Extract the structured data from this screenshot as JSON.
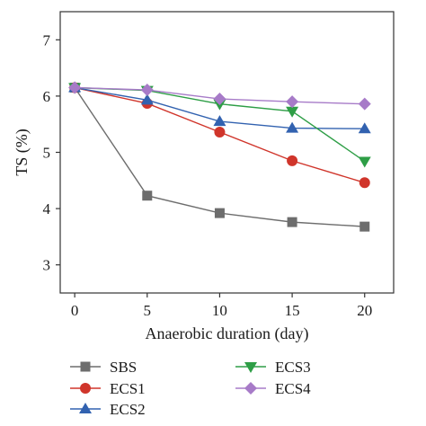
{
  "chart_data": {
    "type": "line",
    "xlabel": "Anaerobic duration (day)",
    "ylabel": "TS (%)",
    "xlim": [
      -1,
      22
    ],
    "ylim": [
      2.5,
      7.5
    ],
    "xticks": [
      0,
      5,
      10,
      15,
      20
    ],
    "yticks": [
      3,
      4,
      5,
      6,
      7
    ],
    "grid": false,
    "legend_position": "bottom",
    "x": [
      0,
      5,
      10,
      15,
      20
    ],
    "series": [
      {
        "name": "SBS",
        "color": "#6d6d6d",
        "marker": "square",
        "values": [
          6.15,
          4.23,
          3.92,
          3.76,
          3.68
        ]
      },
      {
        "name": "ECS1",
        "color": "#d0352b",
        "marker": "circle",
        "values": [
          6.15,
          5.87,
          5.36,
          4.85,
          4.46
        ]
      },
      {
        "name": "ECS2",
        "color": "#3262b0",
        "marker": "triangle-up",
        "values": [
          6.15,
          5.93,
          5.55,
          5.43,
          5.42
        ]
      },
      {
        "name": "ECS3",
        "color": "#2e9e46",
        "marker": "triangle-down",
        "values": [
          6.15,
          6.1,
          5.86,
          5.73,
          4.84
        ]
      },
      {
        "name": "ECS4",
        "color": "#a77bc8",
        "marker": "diamond",
        "values": [
          6.15,
          6.11,
          5.95,
          5.9,
          5.86
        ]
      }
    ]
  }
}
